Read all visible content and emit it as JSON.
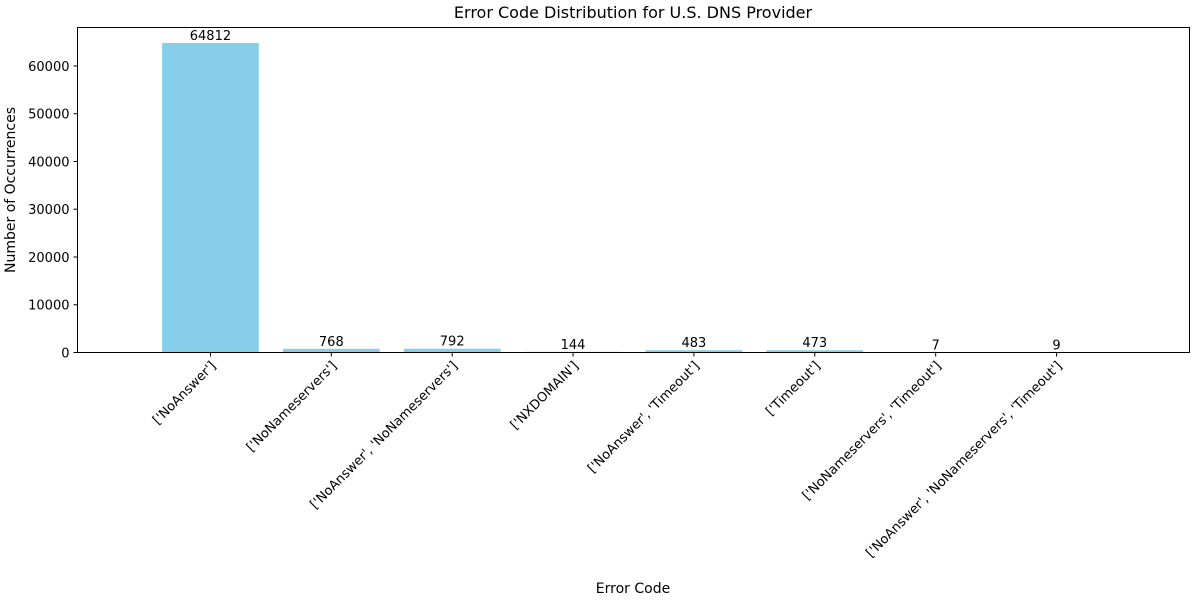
{
  "chart_data": {
    "type": "bar",
    "title": "Error Code Distribution for U.S. DNS Provider",
    "xlabel": "Error Code",
    "ylabel": "Number of Occurrences",
    "categories": [
      "['NoAnswer']",
      "['NoNameservers']",
      "['NoAnswer', 'NoNameservers']",
      "['NXDOMAIN']",
      "['NoAnswer', 'Timeout']",
      "['Timeout']",
      "['NoNameservers', 'Timeout']",
      "['NoAnswer', 'NoNameservers', 'Timeout']"
    ],
    "values": [
      64812,
      768,
      792,
      144,
      483,
      473,
      7,
      9
    ],
    "data_labels": [
      "64812",
      "768",
      "792",
      "144",
      "483",
      "473",
      "7",
      "9"
    ],
    "yticks": [
      0,
      10000,
      20000,
      30000,
      40000,
      50000,
      60000
    ],
    "ytick_labels": [
      "0",
      "10000",
      "20000",
      "30000",
      "40000",
      "50000",
      "60000"
    ],
    "ylim": [
      0,
      68052.6
    ],
    "grid": false,
    "legend": "none",
    "bar_color": "#87ceeb"
  }
}
